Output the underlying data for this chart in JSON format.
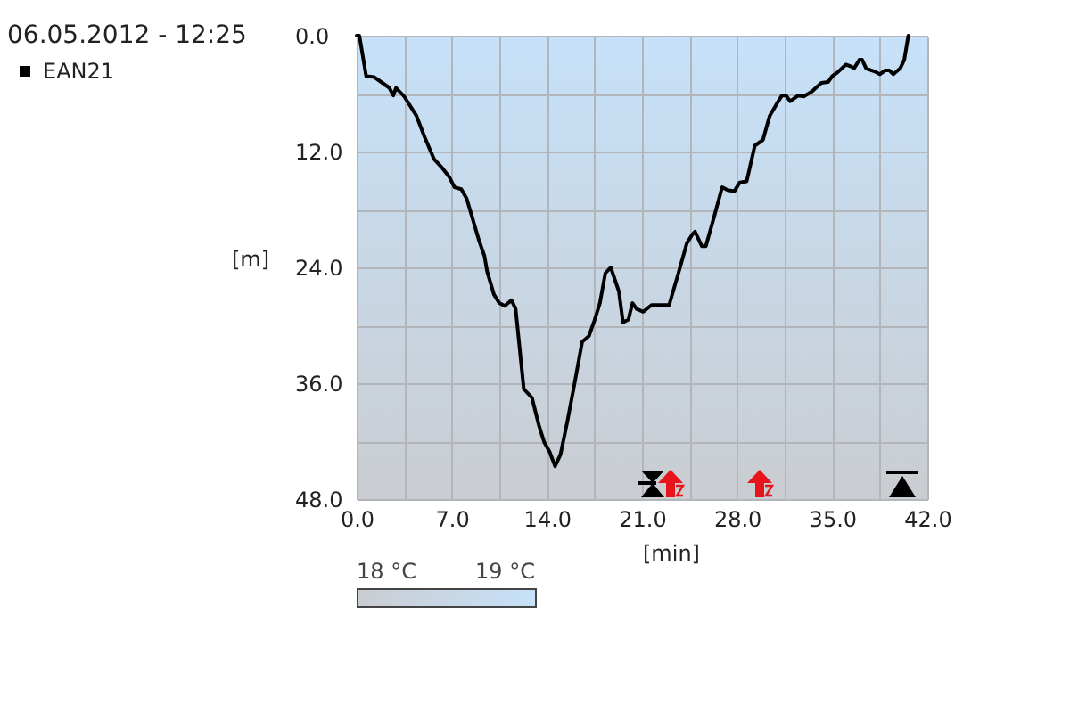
{
  "chart_data": {
    "type": "line",
    "title": "06.05.2012 - 12:25",
    "xlabel": "[min]",
    "ylabel": "[m]",
    "x": [
      0,
      0.2,
      0.7,
      1.3,
      1.8,
      2.4,
      2.7,
      2.9,
      3.5,
      4.4,
      5.0,
      5.7,
      6.3,
      6.8,
      7.2,
      7.7,
      8.1,
      8.5,
      9.0,
      9.4,
      9.6,
      10.1,
      10.5,
      10.9,
      11.4,
      11.7,
      12.3,
      12.9,
      13.4,
      13.8,
      14.2,
      14.6,
      15.0,
      15.5,
      16.0,
      16.6,
      17.1,
      17.5,
      17.9,
      18.3,
      18.7,
      19.3,
      19.6,
      20.0,
      20.3,
      20.6,
      21.1,
      21.7,
      23.0,
      23.8,
      24.3,
      24.7,
      24.9,
      25.4,
      25.7,
      26.3,
      26.9,
      27.3,
      27.8,
      28.2,
      28.7,
      29.3,
      29.9,
      30.4,
      30.9,
      31.3,
      31.6,
      31.9,
      32.5,
      32.9,
      33.5,
      34.2,
      34.7,
      35.0,
      35.4,
      36.0,
      36.4,
      36.6,
      37.0,
      37.2,
      37.5,
      38.1,
      38.5,
      38.9,
      39.2,
      39.5,
      40.0,
      40.3,
      40.6
    ],
    "series": [
      {
        "name": "EAN21",
        "color": "#000000",
        "values": [
          0,
          0,
          4.2,
          4.3,
          4.8,
          5.4,
          6.2,
          5.4,
          6.3,
          8.3,
          10.5,
          12.8,
          13.7,
          14.6,
          15.7,
          15.9,
          16.9,
          18.8,
          21.2,
          22.8,
          24.4,
          26.8,
          27.7,
          28.0,
          27.4,
          28.3,
          36.6,
          37.5,
          40.3,
          42.1,
          43.1,
          44.6,
          43.4,
          40.0,
          36.3,
          31.7,
          31.1,
          29.5,
          27.7,
          24.6,
          24.0,
          26.5,
          29.7,
          29.4,
          27.7,
          28.3,
          28.6,
          27.9,
          27.9,
          24.0,
          21.5,
          20.6,
          20.3,
          21.8,
          21.8,
          18.8,
          15.7,
          16.0,
          16.1,
          15.2,
          15.1,
          11.4,
          10.8,
          8.3,
          7.1,
          6.2,
          6.2,
          6.8,
          6.2,
          6.3,
          5.8,
          4.9,
          4.8,
          4.2,
          3.8,
          3.0,
          3.2,
          3.4,
          2.5,
          2.5,
          3.4,
          3.7,
          4.0,
          3.6,
          3.6,
          4.0,
          3.4,
          2.5,
          0
        ]
      }
    ],
    "xlim": [
      0,
      42
    ],
    "ylim": [
      48,
      0
    ],
    "xticks": [
      {
        "value": 0,
        "label": "0.0"
      },
      {
        "value": 3.5,
        "label": null
      },
      {
        "value": 7,
        "label": "7.0"
      },
      {
        "value": 10.5,
        "label": null
      },
      {
        "value": 14,
        "label": "14.0"
      },
      {
        "value": 17.5,
        "label": null
      },
      {
        "value": 21,
        "label": "21.0"
      },
      {
        "value": 24.5,
        "label": null
      },
      {
        "value": 28,
        "label": "28.0"
      },
      {
        "value": 31.5,
        "label": null
      },
      {
        "value": 35,
        "label": "35.0"
      },
      {
        "value": 38.5,
        "label": null
      },
      {
        "value": 42,
        "label": "42.0"
      }
    ],
    "yticks": [
      {
        "value": 0,
        "label": "0.0"
      },
      {
        "value": 6,
        "label": null
      },
      {
        "value": 12,
        "label": "12.0"
      },
      {
        "value": 18,
        "label": null
      },
      {
        "value": 24,
        "label": "24.0"
      },
      {
        "value": 30,
        "label": null
      },
      {
        "value": 36,
        "label": "36.0"
      },
      {
        "value": 42,
        "label": null
      },
      {
        "value": 48,
        "label": "48.0"
      }
    ],
    "grid": true,
    "legend": "top left",
    "clim": [
      18,
      19
    ],
    "cticks": [
      {
        "value": 18,
        "label": "18 °C"
      },
      {
        "value": 19,
        "label": "19 °C"
      }
    ]
  }
}
